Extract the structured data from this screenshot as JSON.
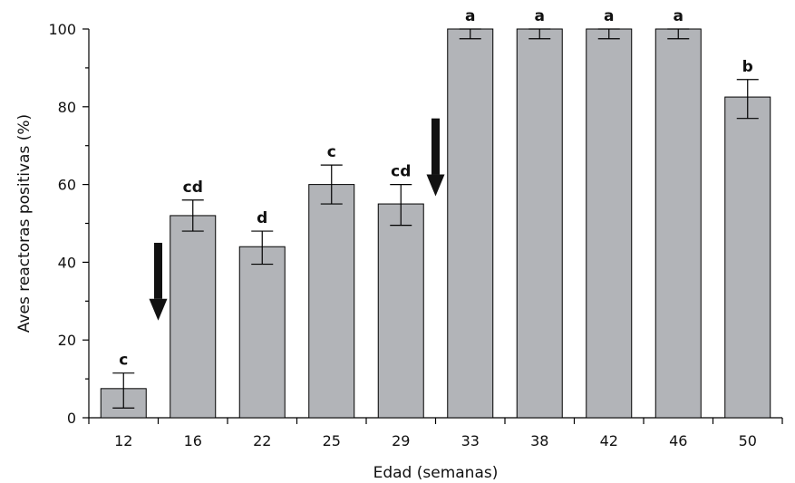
{
  "chart_data": {
    "type": "bar",
    "xlabel": "Edad (semanas)",
    "ylabel": "Aves reactoras positivas (%)",
    "ylim": [
      0,
      100
    ],
    "yticks": [
      0,
      20,
      40,
      60,
      80,
      100
    ],
    "categories": [
      "12",
      "16",
      "22",
      "25",
      "29",
      "33",
      "38",
      "42",
      "46",
      "50"
    ],
    "values": [
      7.5,
      52,
      44,
      60,
      55,
      100,
      100,
      100,
      100,
      82.5
    ],
    "error_upper": [
      11.5,
      56,
      48,
      65,
      60,
      100,
      100,
      100,
      100,
      87
    ],
    "error_lower": [
      2.5,
      48,
      39.5,
      55,
      49.5,
      97.5,
      97.5,
      97.5,
      97.5,
      77
    ],
    "significance_letters": [
      "c",
      "cd",
      "d",
      "c",
      "cd",
      "a",
      "a",
      "a",
      "a",
      "b"
    ],
    "arrows": [
      {
        "between": [
          "12",
          "16"
        ],
        "top": 45,
        "bottom": 25,
        "direction": "down"
      },
      {
        "between": [
          "29",
          "33"
        ],
        "top": 77,
        "bottom": 57,
        "direction": "down"
      }
    ],
    "bar_color": "#b2b4b8",
    "grid": false,
    "legend": "none"
  }
}
